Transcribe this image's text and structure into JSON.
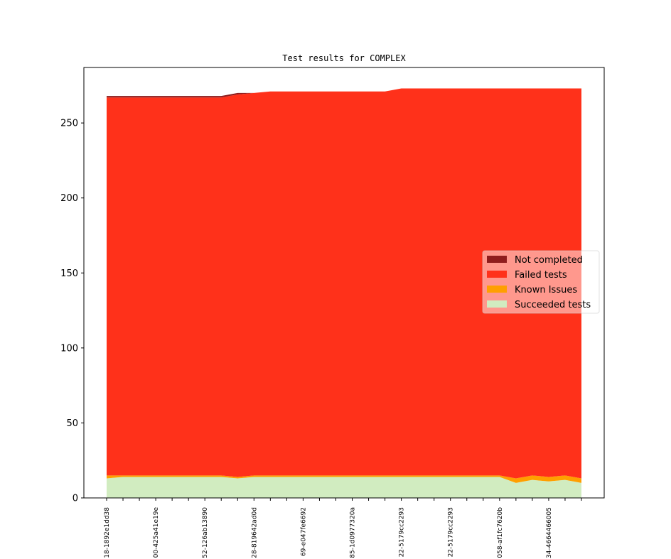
{
  "chart_data": {
    "type": "area",
    "title": "Test results for COMPLEX",
    "xlabel": "",
    "ylabel": "",
    "ylim": [
      0,
      287
    ],
    "yticks": [
      0,
      50,
      100,
      150,
      200,
      250
    ],
    "x_tick_labels": [
      "18-1892e1dd38",
      "00-425a41e19e",
      "52-126ab13890",
      "28-819642ad0d",
      "69-e047fe6692",
      "85-1d0977320a",
      "22-5179cc2293",
      "22-5179cc2293",
      "058-af1fc7620b",
      "34-4664466005"
    ],
    "n_points": 30,
    "labeled_tick_every": 3,
    "series": [
      {
        "name": "Succeeded tests",
        "color": "#d1ecc0",
        "values": [
          13,
          14,
          14,
          14,
          14,
          14,
          14,
          14,
          13,
          14,
          14,
          14,
          14,
          14,
          14,
          14,
          14,
          14,
          14,
          14,
          14,
          14,
          14,
          14,
          14,
          10,
          12,
          11,
          12,
          10
        ]
      },
      {
        "name": "Known Issues",
        "color": "#ff9f00",
        "values": [
          2,
          1,
          1,
          1,
          1,
          1,
          1,
          1,
          1,
          1,
          1,
          1,
          1,
          1,
          1,
          1,
          1,
          1,
          1,
          1,
          1,
          1,
          1,
          1,
          1,
          3,
          3,
          3,
          3,
          3
        ]
      },
      {
        "name": "Failed tests",
        "color": "#ff311a",
        "values": [
          252,
          252,
          252,
          252,
          252,
          252,
          252,
          252,
          255,
          255,
          256,
          256,
          256,
          256,
          256,
          256,
          256,
          256,
          258,
          258,
          258,
          258,
          258,
          258,
          258,
          260,
          258,
          259,
          258,
          260
        ]
      },
      {
        "name": "Not completed",
        "color": "#8f1d1d",
        "values": [
          1,
          1,
          1,
          1,
          1,
          1,
          1,
          1,
          1,
          0,
          0,
          0,
          0,
          0,
          0,
          0,
          0,
          0,
          0,
          0,
          0,
          0,
          0,
          0,
          0,
          0,
          0,
          0,
          0,
          0
        ],
        "legend_totals": [
          268,
          268,
          268,
          268,
          268,
          268,
          268,
          268,
          270,
          270,
          271,
          271,
          271,
          271,
          271,
          271,
          271,
          271,
          273,
          273,
          273,
          273,
          273,
          273,
          273,
          273,
          273,
          273,
          273,
          273
        ]
      }
    ],
    "legend": {
      "position": "center-right",
      "entries": [
        "Not completed",
        "Failed tests",
        "Known Issues",
        "Succeeded tests"
      ]
    },
    "grid": false
  }
}
